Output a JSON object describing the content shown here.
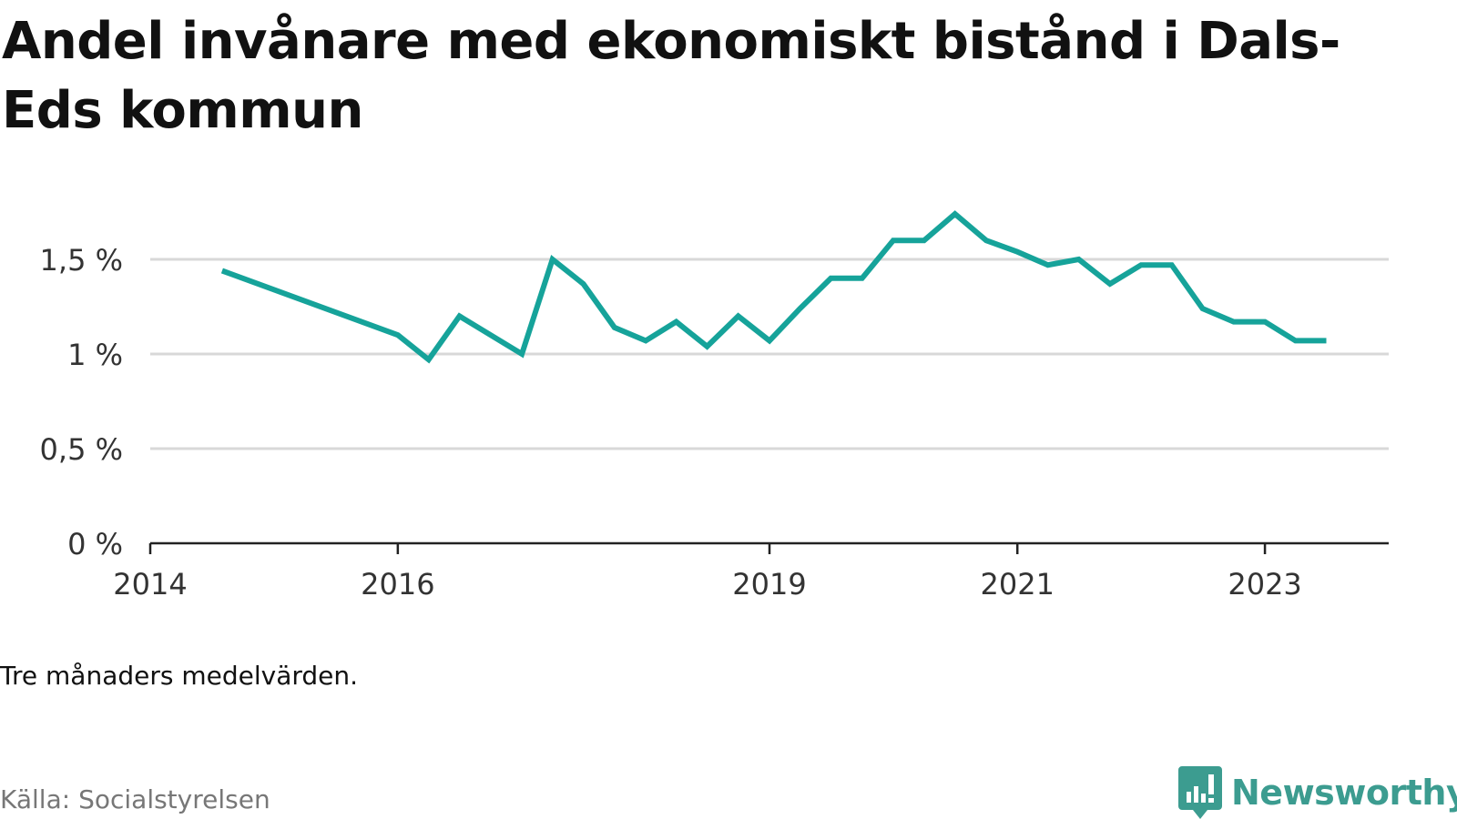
{
  "title": "Andel invånare med ekonomiskt bistånd i Dals-Eds kommun",
  "note": "Tre månaders medelvärden.",
  "source": "Källa: Socialstyrelsen",
  "brand": {
    "name": "Newsworthy",
    "icon": "bar-chart-speech-bubble-icon"
  },
  "colors": {
    "line": "#16a39a",
    "brand": "#3c9c90",
    "grid": "#d8d8d8",
    "axis": "#222222"
  },
  "chart_data": {
    "type": "line",
    "title": "Andel invånare med ekonomiskt bistånd i Dals-Eds kommun",
    "ylabel": "",
    "xlabel": "",
    "ylim": [
      0,
      1.75
    ],
    "yticks": [
      0,
      0.5,
      1,
      1.5
    ],
    "ytick_labels": [
      "0 %",
      "0,5 %",
      "1 %",
      "1,5 %"
    ],
    "xlim": [
      "2014-01-01",
      "2024-01-01"
    ],
    "xticks": [
      "2014-01-01",
      "2016-01-01",
      "2019-01-01",
      "2021-01-01",
      "2023-01-01"
    ],
    "xtick_labels": [
      "2014",
      "2016",
      "2019",
      "2021",
      "2023"
    ],
    "grid": true,
    "series": [
      {
        "x": [
          "2014-08-01",
          "2016-01-01",
          "2016-04-01",
          "2016-07-01",
          "2017-01-01",
          "2017-04-01",
          "2017-07-01",
          "2017-10-01",
          "2018-01-01",
          "2018-04-01",
          "2018-07-01",
          "2018-10-01",
          "2019-01-01",
          "2019-04-01",
          "2019-07-01",
          "2019-10-01",
          "2020-01-01",
          "2020-04-01",
          "2020-07-01",
          "2020-10-01",
          "2021-01-01",
          "2021-04-01",
          "2021-07-01",
          "2021-10-01",
          "2022-01-01",
          "2022-04-01",
          "2022-07-01",
          "2022-10-01",
          "2023-01-01",
          "2023-04-01",
          "2023-07-01"
        ],
        "values": [
          1.44,
          1.1,
          0.97,
          1.2,
          1.0,
          1.5,
          1.37,
          1.14,
          1.07,
          1.17,
          1.04,
          1.2,
          1.07,
          1.24,
          1.4,
          1.4,
          1.6,
          1.6,
          1.74,
          1.6,
          1.54,
          1.47,
          1.5,
          1.37,
          1.47,
          1.47,
          1.24,
          1.17,
          1.17,
          1.07,
          1.07
        ]
      }
    ]
  }
}
